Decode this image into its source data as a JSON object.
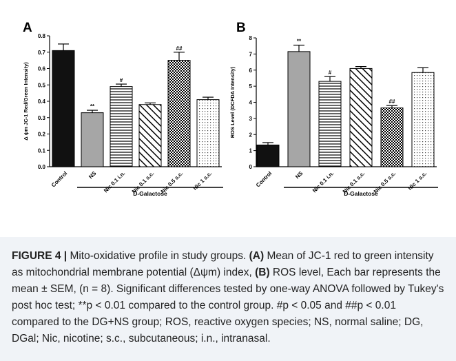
{
  "chart_data": [
    {
      "type": "bar",
      "panel_label": "A",
      "ylabel": "Δ ψm JC-1 Red/Green Intensity)",
      "ylim": [
        0,
        0.8
      ],
      "yticks": [
        "0.0",
        "0.1",
        "0.2",
        "0.3",
        "0.4",
        "0.5",
        "0.6",
        "0.7",
        "0.8"
      ],
      "categories": [
        "Control",
        "NS",
        "Nic 0.1 i.n.",
        "Nic 0.1 s.c.",
        "Nic 0.5 s.c.",
        "Nic 1 s.c."
      ],
      "values": [
        0.71,
        0.33,
        0.49,
        0.38,
        0.65,
        0.41
      ],
      "errors": [
        0.04,
        0.015,
        0.015,
        0.01,
        0.05,
        0.015
      ],
      "annotations": [
        "",
        "**",
        "#",
        "",
        "##",
        ""
      ],
      "fills": [
        "solid-black",
        "solid-gray",
        "horizontal-lines",
        "diagonal-lines",
        "checker",
        "dots"
      ],
      "group_label": "D-Galactose"
    },
    {
      "type": "bar",
      "panel_label": "B",
      "ylabel": "ROS Level (DCFDA Intensity)",
      "ylim": [
        0,
        8
      ],
      "yticks": [
        "0",
        "1",
        "2",
        "3",
        "4",
        "5",
        "6",
        "7",
        "8"
      ],
      "categories": [
        "Control",
        "NS",
        "Nic 0.1 i.n.",
        "Nic 0.1 s.c.",
        "Nic 0.5 s.c.",
        "Nic 1 s.c."
      ],
      "values": [
        1.35,
        7.15,
        5.3,
        6.1,
        3.65,
        5.85
      ],
      "errors": [
        0.15,
        0.4,
        0.3,
        0.12,
        0.15,
        0.3
      ],
      "annotations": [
        "",
        "**",
        "#",
        "",
        "##",
        ""
      ],
      "fills": [
        "solid-black",
        "solid-gray",
        "horizontal-lines",
        "diagonal-lines",
        "checker",
        "dots"
      ],
      "group_label": "D-Galactose"
    }
  ],
  "caption": {
    "lead": "FIGURE 4 | ",
    "s1": "Mito-oxidative profile in study groups. ",
    "a": "(A)",
    "s2": " Mean of JC-1 red to green intensity as mitochondrial membrane potential (Δψm) index, ",
    "b": "(B)",
    "s3": " ROS level, Each bar represents the mean ± SEM, (n = 8). Significant differences tested by one-way ANOVA followed by Tukey's post hoc test; **p < 0.01 compared to the control group. #p < 0.05 and ##p < 0.01 compared to the DG+NS group; ROS, reactive oxygen species; NS, normal saline; DG, DGal; Nic, nicotine; s.c., subcutaneous; i.n., intranasal."
  }
}
